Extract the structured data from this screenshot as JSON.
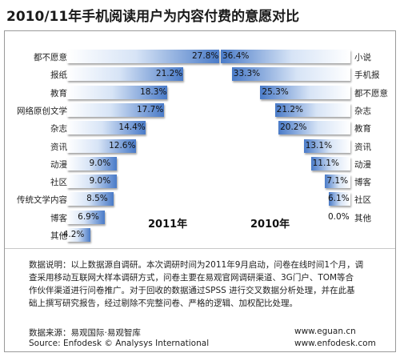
{
  "page": {
    "title": "2010/11年手机阅读用户为内容付费的意愿对比"
  },
  "chart_data": [
    {
      "type": "bar",
      "orientation": "horizontal",
      "year_label": "2011年",
      "categories": [
        "都不愿意",
        "报纸",
        "教育",
        "网络原创文学",
        "杂志",
        "资讯",
        "动漫",
        "社区",
        "传统文学内容",
        "博客",
        "其他"
      ],
      "values": [
        27.8,
        21.2,
        18.3,
        17.7,
        14.4,
        12.6,
        9.0,
        9.0,
        8.5,
        6.9,
        4.2
      ],
      "value_labels": [
        "27.8%",
        "21.2%",
        "18.3%",
        "17.7%",
        "14.4%",
        "12.6%",
        "9.0%",
        "9.0%",
        "8.5%",
        "6.9%",
        "4.2%"
      ],
      "color": "#4a7bc8"
    },
    {
      "type": "bar",
      "orientation": "horizontal",
      "year_label": "2010年",
      "categories": [
        "小说",
        "手机报",
        "都不愿意",
        "杂志",
        "教育",
        "资讯",
        "动漫",
        "博客",
        "社区",
        "其他"
      ],
      "values": [
        36.4,
        33.3,
        25.3,
        21.2,
        20.2,
        13.1,
        11.1,
        7.1,
        6.1,
        0.0
      ],
      "value_labels": [
        "36.4%",
        "33.3%",
        "25.3%",
        "21.2%",
        "20.2%",
        "13.1%",
        "11.1%",
        "7.1%",
        "6.1%",
        "0.0%"
      ],
      "color": "#4a7bc8"
    }
  ],
  "notes": {
    "line1": "数据说明：以上数据源自调研。本次调研时间为2011年9月启动，问卷在线时间1个月，调",
    "line2": "查采用移动互联网大样本调研方式，问卷主要在易观官网调研渠道、3G门户、TOM等合",
    "line3": "作伙伴渠道进行问卷推广。对于回收的数据通过SPSS 进行交叉数据分析处理，并在此基",
    "line4": "础上撰写研究报告，经过剔除不完整问卷、严格的逻辑、加权配比处理。"
  },
  "source": {
    "cn": "数据来源：易观国际·易观智库",
    "en": "Source: Enfodesk © Analysys International",
    "url1": "www.eguan.cn",
    "url2": "www.enfodesk.com"
  }
}
